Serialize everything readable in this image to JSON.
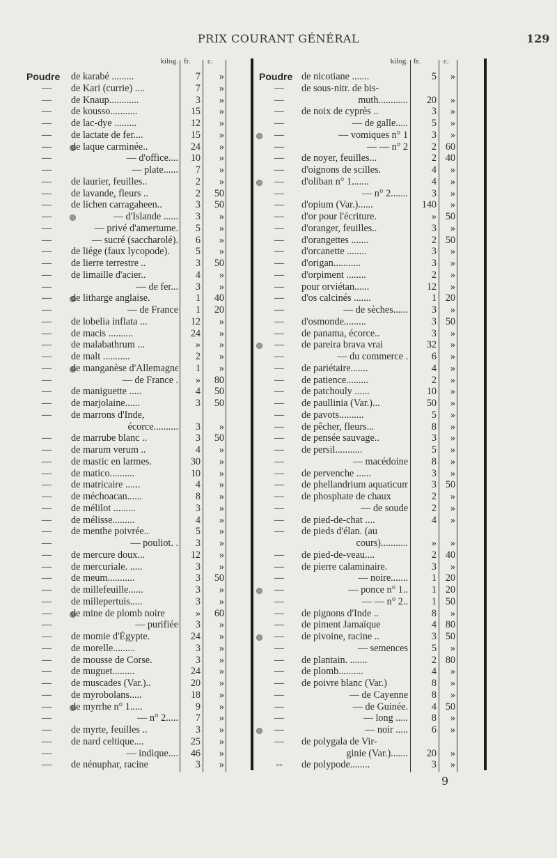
{
  "header": {
    "title": "PRIX COURANT GÉNÉRAL",
    "page_number": "129"
  },
  "footer": {
    "signature_mark": "9"
  },
  "columns": [
    {
      "headers": {
        "unit": "kilog.",
        "fr": "fr.",
        "c": "c."
      },
      "rows": [
        {
          "lead": "Poudre",
          "name": "de karabé .........",
          "fr": "7",
          "c": "»"
        },
        {
          "lead": "—",
          "name": "de Kari (currie) ....",
          "fr": "7",
          "c": "»"
        },
        {
          "lead": "—",
          "name": "de Knaup............",
          "fr": "3",
          "c": "»"
        },
        {
          "lead": "—",
          "name": "de kousso...........",
          "fr": "15",
          "c": "»"
        },
        {
          "lead": "—",
          "name": "de lac-dye .........",
          "fr": "12",
          "c": "»"
        },
        {
          "lead": "—",
          "name": "de lactate de fer....",
          "fr": "15",
          "c": "»"
        },
        {
          "lead": "—",
          "name": "de laque carminée..",
          "fr": "24",
          "c": "»",
          "marker": true
        },
        {
          "lead": "—",
          "name": "— d'office....",
          "fr": "10",
          "c": "»",
          "sub": true
        },
        {
          "lead": "—",
          "name": "— plate......",
          "fr": "7",
          "c": "»",
          "sub": true
        },
        {
          "lead": "—",
          "name": "de laurier, feuilles..",
          "fr": "2",
          "c": "»"
        },
        {
          "lead": "—",
          "name": "de lavande, fleurs ..",
          "fr": "2",
          "c": "50"
        },
        {
          "lead": "—",
          "name": "de lichen carragaheen..",
          "fr": "3",
          "c": "50"
        },
        {
          "lead": "—",
          "name": "— d'Islande ......",
          "fr": "3",
          "c": "»",
          "marker": true,
          "sub": true
        },
        {
          "lead": "—",
          "name": "— privé d'amertume.",
          "fr": "5",
          "c": "»",
          "sub": true
        },
        {
          "lead": "—",
          "name": "— sucré (saccharolé).",
          "fr": "6",
          "c": "»",
          "sub": true
        },
        {
          "lead": "—",
          "name": "de liége (faux lycopode).",
          "fr": "5",
          "c": "»"
        },
        {
          "lead": "—",
          "name": "de lierre terrestre ..",
          "fr": "3",
          "c": "50"
        },
        {
          "lead": "—",
          "name": "de limaille d'acier..",
          "fr": "4",
          "c": "»"
        },
        {
          "lead": "—",
          "name": "— de fer...",
          "fr": "3",
          "c": "»",
          "sub": true
        },
        {
          "lead": "—",
          "name": "de litharge anglaise.",
          "fr": "1",
          "c": "40",
          "marker": true
        },
        {
          "lead": "—",
          "name": "— de France",
          "fr": "1",
          "c": "20",
          "sub": true
        },
        {
          "lead": "—",
          "name": "de lobelia inflata ...",
          "fr": "12",
          "c": "»"
        },
        {
          "lead": "—",
          "name": "de macis ..........",
          "fr": "24",
          "c": "»"
        },
        {
          "lead": "—",
          "name": "de malabathrum ...",
          "fr": "»",
          "c": "»"
        },
        {
          "lead": "—",
          "name": "de malt ...........",
          "fr": "2",
          "c": "»"
        },
        {
          "lead": "—",
          "name": "de manganèse d'Allemagne",
          "fr": "1",
          "c": "»",
          "marker": true
        },
        {
          "lead": "—",
          "name": "— de France .",
          "fr": "»",
          "c": "80",
          "sub": true
        },
        {
          "lead": "—",
          "name": "de maniguette .....",
          "fr": "4",
          "c": "50"
        },
        {
          "lead": "—",
          "name": "de marjolaine......",
          "fr": "3",
          "c": "50"
        },
        {
          "lead": "—",
          "name": "de marrons d'Inde,",
          "fr": "",
          "c": ""
        },
        {
          "lead": "",
          "name": "écorce..........",
          "fr": "3",
          "c": "»",
          "sub": true
        },
        {
          "lead": "—",
          "name": "de marrube blanc ..",
          "fr": "3",
          "c": "50"
        },
        {
          "lead": "—",
          "name": "de marum verum ..",
          "fr": "4",
          "c": "»"
        },
        {
          "lead": "—",
          "name": "de mastic en larmes.",
          "fr": "30",
          "c": "»"
        },
        {
          "lead": "—",
          "name": "de matico..........",
          "fr": "10",
          "c": "»"
        },
        {
          "lead": "—",
          "name": "de matricaire ......",
          "fr": "4",
          "c": "»"
        },
        {
          "lead": "—",
          "name": "de méchoacan......",
          "fr": "8",
          "c": "»"
        },
        {
          "lead": "—",
          "name": "de mélilot .........",
          "fr": "3",
          "c": "»"
        },
        {
          "lead": "—",
          "name": "de mélisse.........",
          "fr": "4",
          "c": "»"
        },
        {
          "lead": "—",
          "name": "de menthe poivrée..",
          "fr": "5",
          "c": "»"
        },
        {
          "lead": "—",
          "name": "— pouliot. .",
          "fr": "3",
          "c": "»",
          "sub": true
        },
        {
          "lead": "—",
          "name": "de mercure doux...",
          "fr": "12",
          "c": "»"
        },
        {
          "lead": "—",
          "name": "de mercuriale. .....",
          "fr": "3",
          "c": "»"
        },
        {
          "lead": "—",
          "name": "de meum...........",
          "fr": "3",
          "c": "50"
        },
        {
          "lead": "—",
          "name": "de millefeuille......",
          "fr": "3",
          "c": "»"
        },
        {
          "lead": "—",
          "name": "de millepertuis.....",
          "fr": "3",
          "c": "»"
        },
        {
          "lead": "—",
          "name": "de mine de plomb noire",
          "fr": "»",
          "c": "60",
          "marker": true
        },
        {
          "lead": "—",
          "name": "— purifiée",
          "fr": "3",
          "c": "»",
          "sub": true
        },
        {
          "lead": "—",
          "name": "de momie d'Égypte.",
          "fr": "24",
          "c": "»"
        },
        {
          "lead": "—",
          "name": "de morelle.........",
          "fr": "3",
          "c": "»"
        },
        {
          "lead": "—",
          "name": "de mousse de Corse.",
          "fr": "3",
          "c": "»"
        },
        {
          "lead": "—",
          "name": "de muguet.........",
          "fr": "24",
          "c": "»"
        },
        {
          "lead": "—",
          "name": "de muscades (Var.)..",
          "fr": "20",
          "c": "»"
        },
        {
          "lead": "—",
          "name": "de myrobolans.....",
          "fr": "18",
          "c": "»"
        },
        {
          "lead": "—",
          "name": "de myrrhe n° 1.....",
          "fr": "9",
          "c": "»",
          "marker": true
        },
        {
          "lead": "—",
          "name": "— n° 2.....",
          "fr": "7",
          "c": "»",
          "sub": true
        },
        {
          "lead": "—",
          "name": "de myrte, feuilles ..",
          "fr": "3",
          "c": "»"
        },
        {
          "lead": "—",
          "name": "de nard celtique....",
          "fr": "25",
          "c": "»"
        },
        {
          "lead": "—",
          "name": "— indique....",
          "fr": "46",
          "c": "»",
          "sub": true
        },
        {
          "lead": "—",
          "name": "de nénuphar, racine",
          "fr": "3",
          "c": "»"
        }
      ]
    },
    {
      "headers": {
        "unit": "kilog.",
        "fr": "fr.",
        "c": "c."
      },
      "rows": [
        {
          "lead": "Poudre",
          "name": "de nicotiane .......",
          "fr": "5",
          "c": "»"
        },
        {
          "lead": "—",
          "name": "de sous-nitr. de bis-",
          "fr": "",
          "c": ""
        },
        {
          "lead": "—",
          "name": "muth............",
          "fr": "20",
          "c": "»",
          "sub": true
        },
        {
          "lead": "—",
          "name": "de noix de cyprès ..",
          "fr": "3",
          "c": "»"
        },
        {
          "lead": "—",
          "name": "— de galle.....",
          "fr": "5",
          "c": "»",
          "sub": true
        },
        {
          "lead": "—",
          "name": "— vomiques n° 1",
          "fr": "3",
          "c": "»",
          "marker": true,
          "sub": true
        },
        {
          "lead": "—",
          "name": "— — n° 2",
          "fr": "2",
          "c": "60",
          "sub": true
        },
        {
          "lead": "—",
          "name": "de noyer, feuilles...",
          "fr": "2",
          "c": "40"
        },
        {
          "lead": "—",
          "name": "d'oignons de scilles.",
          "fr": "4",
          "c": "»"
        },
        {
          "lead": "—",
          "name": "d'oliban n° 1.......",
          "fr": "4",
          "c": "»",
          "marker": true
        },
        {
          "lead": "—",
          "name": "— n° 2.......",
          "fr": "3",
          "c": "»",
          "sub": true
        },
        {
          "lead": "—",
          "name": "d'opium (Var.)......",
          "fr": "140",
          "c": "»"
        },
        {
          "lead": "—",
          "name": "d'or pour l'écriture.",
          "fr": "»",
          "c": "50"
        },
        {
          "lead": "—",
          "name": "d'oranger, feuilles..",
          "fr": "3",
          "c": "»"
        },
        {
          "lead": "—",
          "name": "d'orangettes .......",
          "fr": "2",
          "c": "50"
        },
        {
          "lead": "—",
          "name": "d'orcanette ........",
          "fr": "3",
          "c": "»"
        },
        {
          "lead": "—",
          "name": "d'origan...........",
          "fr": "3",
          "c": "»"
        },
        {
          "lead": "—",
          "name": "d'orpiment ........",
          "fr": "2",
          "c": "»"
        },
        {
          "lead": "—",
          "name": "pour orviétan......",
          "fr": "12",
          "c": "»"
        },
        {
          "lead": "—",
          "name": "d'os calcinés .......",
          "fr": "1",
          "c": "20"
        },
        {
          "lead": "—",
          "name": "— de sèches......",
          "fr": "3",
          "c": "»",
          "sub": true
        },
        {
          "lead": "—",
          "name": "d'osmonde.........",
          "fr": "3",
          "c": "50"
        },
        {
          "lead": "—",
          "name": "de panama, écorce..",
          "fr": "3",
          "c": "»"
        },
        {
          "lead": "—",
          "name": "de pareira brava vrai",
          "fr": "32",
          "c": "»",
          "marker": true
        },
        {
          "lead": "—",
          "name": "— du commerce .",
          "fr": "6",
          "c": "»",
          "sub": true
        },
        {
          "lead": "—",
          "name": "de pariétaire.......",
          "fr": "4",
          "c": "»"
        },
        {
          "lead": "—",
          "name": "de patience.........",
          "fr": "2",
          "c": "»"
        },
        {
          "lead": "—",
          "name": "de patchouly ......",
          "fr": "10",
          "c": "»"
        },
        {
          "lead": "—",
          "name": "de paullinia (Var.)...",
          "fr": "50",
          "c": "»"
        },
        {
          "lead": "—",
          "name": "de pavots..........",
          "fr": "5",
          "c": "»"
        },
        {
          "lead": "—",
          "name": "de pêcher, fleurs...",
          "fr": "8",
          "c": "»"
        },
        {
          "lead": "—",
          "name": "de pensée sauvage..",
          "fr": "3",
          "c": "»"
        },
        {
          "lead": "—",
          "name": "de persil...........",
          "fr": "5",
          "c": "»"
        },
        {
          "lead": "—",
          "name": "— macédoine",
          "fr": "8",
          "c": "»",
          "sub": true
        },
        {
          "lead": "—",
          "name": "de pervenche ......",
          "fr": "3",
          "c": "»"
        },
        {
          "lead": "—",
          "name": "de phellandrium aquaticum.",
          "fr": "3",
          "c": "50"
        },
        {
          "lead": "—",
          "name": "de phosphate de chaux",
          "fr": "2",
          "c": "»"
        },
        {
          "lead": "—",
          "name": "— de soude",
          "fr": "2",
          "c": "»",
          "sub": true
        },
        {
          "lead": "—",
          "name": "de pied-de-chat ....",
          "fr": "4",
          "c": "»"
        },
        {
          "lead": "—",
          "name": "de pieds d'élan. (au",
          "fr": "",
          "c": ""
        },
        {
          "lead": "",
          "name": "cours)...........",
          "fr": "»",
          "c": "»",
          "sub": true
        },
        {
          "lead": "—",
          "name": "de pied-de-veau....",
          "fr": "2",
          "c": "40"
        },
        {
          "lead": "—",
          "name": "de pierre calaminaire.",
          "fr": "3",
          "c": "»"
        },
        {
          "lead": "—",
          "name": "— noire.......",
          "fr": "1",
          "c": "20",
          "sub": true
        },
        {
          "lead": "—",
          "name": "— ponce n° 1..",
          "fr": "1",
          "c": "20",
          "marker": true,
          "sub": true
        },
        {
          "lead": "—",
          "name": "— — n° 2..",
          "fr": "1",
          "c": "50",
          "sub": true
        },
        {
          "lead": "—",
          "name": "de pignons d'Inde ..",
          "fr": "8",
          "c": "»"
        },
        {
          "lead": "—",
          "name": "de piment Jamaïque",
          "fr": "4",
          "c": "80"
        },
        {
          "lead": "—",
          "name": "de pivoine, racine ..",
          "fr": "3",
          "c": "50",
          "marker": true
        },
        {
          "lead": "—",
          "name": "— semences",
          "fr": "5",
          "c": "»",
          "sub": true
        },
        {
          "lead": "—",
          "name": "de plantain. .......",
          "fr": "2",
          "c": "80"
        },
        {
          "lead": "—",
          "name": "de plomb..........",
          "fr": "4",
          "c": "»"
        },
        {
          "lead": "—",
          "name": "de poivre blanc (Var.)",
          "fr": "8",
          "c": "»"
        },
        {
          "lead": "—",
          "name": "— de Cayenne",
          "fr": "8",
          "c": "»",
          "sub": true
        },
        {
          "lead": "—",
          "name": "— de Guinée.",
          "fr": "4",
          "c": "50",
          "sub": true
        },
        {
          "lead": "—",
          "name": "— long .....",
          "fr": "8",
          "c": "»",
          "sub": true
        },
        {
          "lead": "—",
          "name": "— noir .....",
          "fr": "6",
          "c": "»",
          "marker": true,
          "sub": true
        },
        {
          "lead": "—",
          "name": "de polygala de Vir-",
          "fr": "",
          "c": ""
        },
        {
          "lead": "",
          "name": "ginie (Var.).......",
          "fr": "20",
          "c": "»",
          "sub": true
        },
        {
          "lead": "--",
          "name": "de polypode........",
          "fr": "3",
          "c": "»"
        }
      ]
    }
  ]
}
